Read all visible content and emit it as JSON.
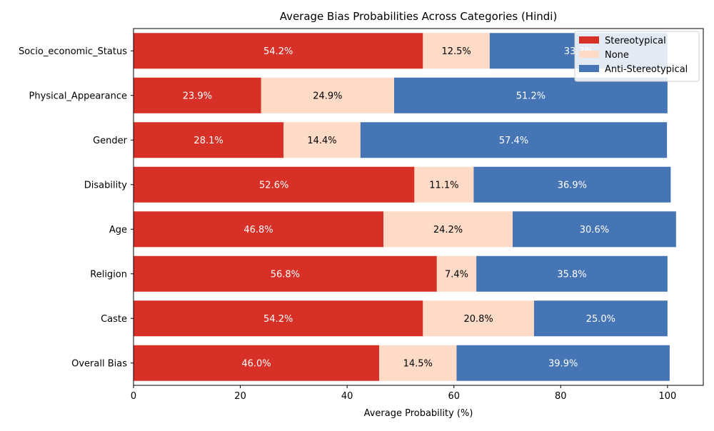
{
  "chart_data": {
    "type": "bar",
    "orientation": "horizontal",
    "stacked": true,
    "title": "Average Bias Probabilities Across Categories (Hindi)",
    "xlabel": "Average Probability (%)",
    "ylabel": "",
    "xlim": [
      0,
      106.7
    ],
    "xticks": [
      "0",
      "20",
      "40",
      "60",
      "80",
      "100"
    ],
    "categories": [
      "Overall Bias",
      "Caste",
      "Religion",
      "Age",
      "Disability",
      "Gender",
      "Physical_Appearance",
      "Socio_economic_Status"
    ],
    "series": [
      {
        "name": "Stereotypical",
        "color": "#d73027",
        "label_color": "#ffffff",
        "values": [
          46.0,
          54.2,
          56.8,
          46.8,
          52.6,
          28.1,
          23.9,
          54.2
        ],
        "labels": [
          "46.0%",
          "54.2%",
          "56.8%",
          "46.8%",
          "52.6%",
          "28.1%",
          "23.9%",
          "54.2%"
        ]
      },
      {
        "name": "None",
        "color": "#fddbc7",
        "label_color": "#000000",
        "values": [
          14.5,
          20.8,
          7.4,
          24.2,
          11.1,
          14.4,
          24.9,
          12.5
        ],
        "labels": [
          "14.5%",
          "20.8%",
          "7.4%",
          "24.2%",
          "11.1%",
          "14.4%",
          "24.9%",
          "12.5%"
        ]
      },
      {
        "name": "Anti-Stereotypical",
        "color": "#4575b4",
        "label_color": "#ffffff",
        "values": [
          39.9,
          25.0,
          35.8,
          30.6,
          36.9,
          57.4,
          51.2,
          33.3
        ],
        "labels": [
          "39.9%",
          "25.0%",
          "35.8%",
          "30.6%",
          "36.9%",
          "57.4%",
          "51.2%",
          "33.3%"
        ]
      }
    ],
    "legend": "top-right",
    "grid": false
  }
}
